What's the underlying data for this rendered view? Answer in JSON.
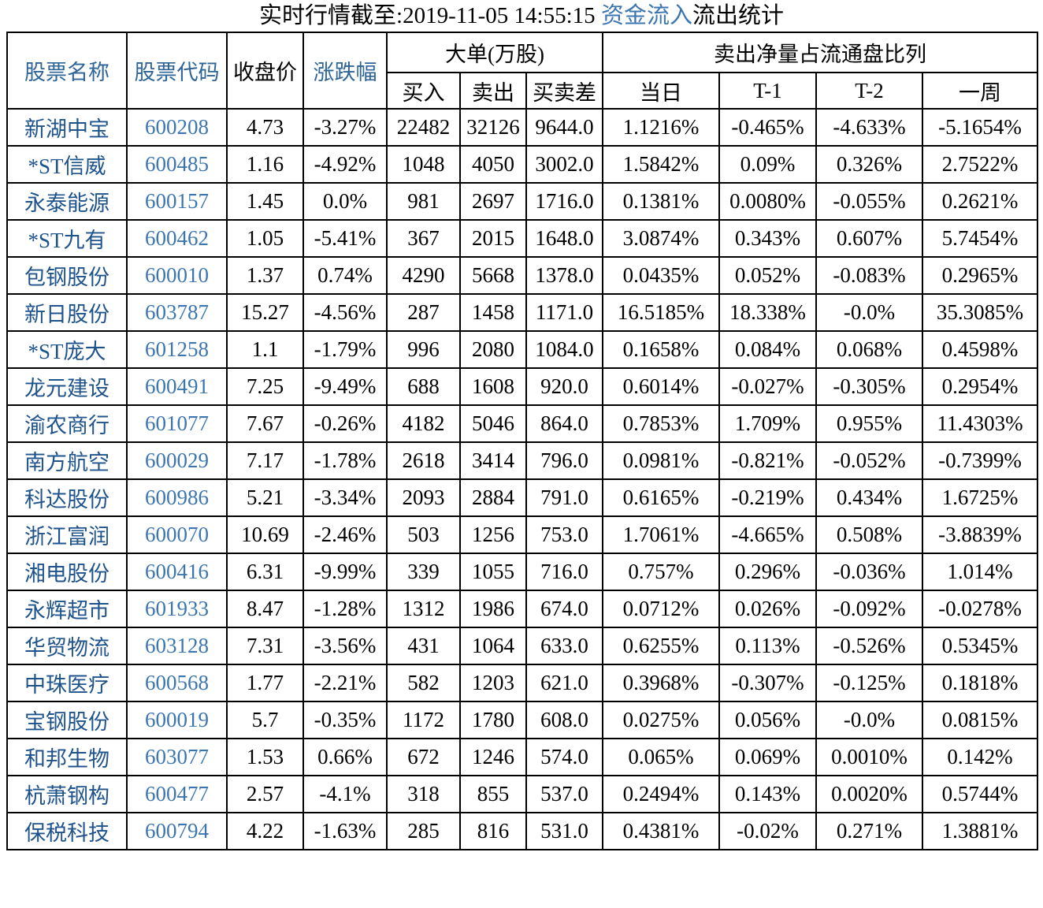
{
  "title": {
    "prefix": "实时行情截至:2019-11-05 14:55:15 ",
    "highlight": "资金流入",
    "suffix": "流出统计"
  },
  "colors": {
    "stock_name_blue": "#1f538c",
    "stock_code_blue": "#3c76b0",
    "header_blue": "#2e6496",
    "title_highlight_blue": "#3c76b0",
    "border_black": "#000000"
  },
  "table": {
    "headers": {
      "name": "股票名称",
      "code": "股票代码",
      "close": "收盘价",
      "change": "涨跌幅",
      "group_large": "大单(万股)",
      "buy": "买入",
      "sell": "卖出",
      "diff": "买卖差",
      "group_ratio": "卖出净量占流通盘比列",
      "day": "当日",
      "t1": "T-1",
      "t2": "T-2",
      "week": "一周"
    },
    "columns": [
      "stock-name",
      "stock-code",
      "close-price",
      "change-pct",
      "buy-volume",
      "sell-volume",
      "buy-sell-diff",
      "day-ratio",
      "t1-ratio",
      "t2-ratio",
      "week-ratio"
    ],
    "rows": [
      [
        "新湖中宝",
        "600208",
        "4.73",
        "-3.27%",
        "22482",
        "32126",
        "9644.0",
        "1.1216%",
        "-0.465%",
        "-4.633%",
        "-5.1654%"
      ],
      [
        "*ST信威",
        "600485",
        "1.16",
        "-4.92%",
        "1048",
        "4050",
        "3002.0",
        "1.5842%",
        "0.09%",
        "0.326%",
        "2.7522%"
      ],
      [
        "永泰能源",
        "600157",
        "1.45",
        "0.0%",
        "981",
        "2697",
        "1716.0",
        "0.1381%",
        "0.0080%",
        "-0.055%",
        "0.2621%"
      ],
      [
        "*ST九有",
        "600462",
        "1.05",
        "-5.41%",
        "367",
        "2015",
        "1648.0",
        "3.0874%",
        "0.343%",
        "0.607%",
        "5.7454%"
      ],
      [
        "包钢股份",
        "600010",
        "1.37",
        "0.74%",
        "4290",
        "5668",
        "1378.0",
        "0.0435%",
        "0.052%",
        "-0.083%",
        "0.2965%"
      ],
      [
        "新日股份",
        "603787",
        "15.27",
        "-4.56%",
        "287",
        "1458",
        "1171.0",
        "16.5185%",
        "18.338%",
        "-0.0%",
        "35.3085%"
      ],
      [
        "*ST庞大",
        "601258",
        "1.1",
        "-1.79%",
        "996",
        "2080",
        "1084.0",
        "0.1658%",
        "0.084%",
        "0.068%",
        "0.4598%"
      ],
      [
        "龙元建设",
        "600491",
        "7.25",
        "-9.49%",
        "688",
        "1608",
        "920.0",
        "0.6014%",
        "-0.027%",
        "-0.305%",
        "0.2954%"
      ],
      [
        "渝农商行",
        "601077",
        "7.67",
        "-0.26%",
        "4182",
        "5046",
        "864.0",
        "0.7853%",
        "1.709%",
        "0.955%",
        "11.4303%"
      ],
      [
        "南方航空",
        "600029",
        "7.17",
        "-1.78%",
        "2618",
        "3414",
        "796.0",
        "0.0981%",
        "-0.821%",
        "-0.052%",
        "-0.7399%"
      ],
      [
        "科达股份",
        "600986",
        "5.21",
        "-3.34%",
        "2093",
        "2884",
        "791.0",
        "0.6165%",
        "-0.219%",
        "0.434%",
        "1.6725%"
      ],
      [
        "浙江富润",
        "600070",
        "10.69",
        "-2.46%",
        "503",
        "1256",
        "753.0",
        "1.7061%",
        "-4.665%",
        "0.508%",
        "-3.8839%"
      ],
      [
        "湘电股份",
        "600416",
        "6.31",
        "-9.99%",
        "339",
        "1055",
        "716.0",
        "0.757%",
        "0.296%",
        "-0.036%",
        "1.014%"
      ],
      [
        "永辉超市",
        "601933",
        "8.47",
        "-1.28%",
        "1312",
        "1986",
        "674.0",
        "0.0712%",
        "0.026%",
        "-0.092%",
        "-0.0278%"
      ],
      [
        "华贸物流",
        "603128",
        "7.31",
        "-3.56%",
        "431",
        "1064",
        "633.0",
        "0.6255%",
        "0.113%",
        "-0.526%",
        "0.5345%"
      ],
      [
        "中珠医疗",
        "600568",
        "1.77",
        "-2.21%",
        "582",
        "1203",
        "621.0",
        "0.3968%",
        "-0.307%",
        "-0.125%",
        "0.1818%"
      ],
      [
        "宝钢股份",
        "600019",
        "5.7",
        "-0.35%",
        "1172",
        "1780",
        "608.0",
        "0.0275%",
        "0.056%",
        "-0.0%",
        "0.0815%"
      ],
      [
        "和邦生物",
        "603077",
        "1.53",
        "0.66%",
        "672",
        "1246",
        "574.0",
        "0.065%",
        "0.069%",
        "0.0010%",
        "0.142%"
      ],
      [
        "杭萧钢构",
        "600477",
        "2.57",
        "-4.1%",
        "318",
        "855",
        "537.0",
        "0.2494%",
        "0.143%",
        "0.0020%",
        "0.5744%"
      ],
      [
        "保税科技",
        "600794",
        "4.22",
        "-1.63%",
        "285",
        "816",
        "531.0",
        "0.4381%",
        "-0.02%",
        "0.271%",
        "1.3881%"
      ]
    ]
  }
}
